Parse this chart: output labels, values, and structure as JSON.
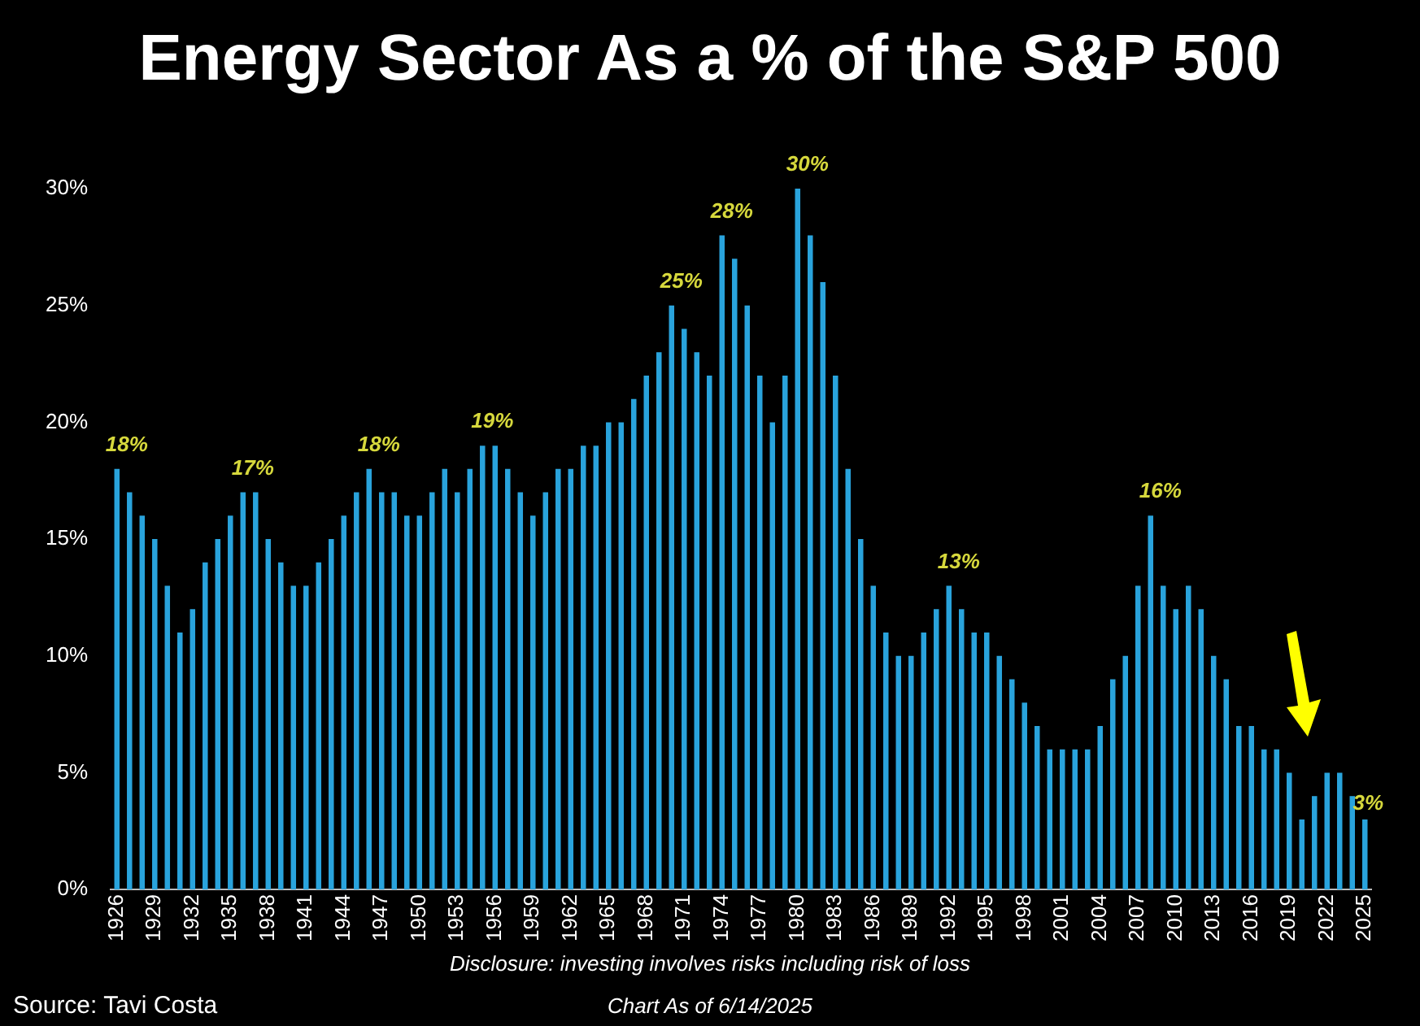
{
  "chart_data": {
    "type": "bar",
    "title": "Energy Sector As a % of the S&P 500",
    "categories": [
      "1926",
      null,
      null,
      "1929",
      null,
      null,
      "1932",
      null,
      null,
      "1935",
      null,
      null,
      "1938",
      null,
      null,
      "1941",
      null,
      null,
      "1944",
      null,
      null,
      "1947",
      null,
      null,
      "1950",
      null,
      null,
      "1953",
      null,
      null,
      "1956",
      null,
      null,
      "1959",
      null,
      null,
      "1962",
      null,
      null,
      "1965",
      null,
      null,
      "1968",
      null,
      null,
      "1971",
      null,
      null,
      "1974",
      null,
      null,
      "1977",
      null,
      null,
      "1980",
      null,
      null,
      "1983",
      null,
      null,
      "1986",
      null,
      null,
      "1989",
      null,
      null,
      "1992",
      null,
      null,
      "1995",
      null,
      null,
      "1998",
      null,
      null,
      "2001",
      null,
      null,
      "2004",
      null,
      null,
      "2007",
      null,
      null,
      "2010",
      null,
      null,
      "2013",
      null,
      null,
      "2016",
      null,
      null,
      "2019",
      null,
      null,
      "2022",
      null,
      null,
      "2025"
    ],
    "values": [
      18,
      17,
      16,
      15,
      13,
      11,
      12,
      14,
      15,
      16,
      17,
      17,
      15,
      14,
      13,
      13,
      14,
      15,
      16,
      17,
      18,
      17,
      17,
      16,
      16,
      17,
      18,
      17,
      18,
      19,
      19,
      18,
      17,
      16,
      17,
      18,
      18,
      19,
      19,
      20,
      20,
      21,
      22,
      23,
      25,
      24,
      23,
      22,
      28,
      27,
      25,
      22,
      20,
      22,
      30,
      28,
      26,
      22,
      18,
      15,
      13,
      11,
      10,
      10,
      11,
      12,
      13,
      12,
      11,
      11,
      10,
      9,
      8,
      7,
      6,
      6,
      6,
      6,
      7,
      9,
      10,
      13,
      16,
      13,
      12,
      13,
      12,
      10,
      9,
      7,
      7,
      6,
      6,
      5,
      3,
      4,
      5,
      5,
      4,
      3
    ],
    "value_labels": [
      "18%",
      null,
      null,
      null,
      null,
      null,
      null,
      null,
      null,
      null,
      "17%",
      null,
      null,
      null,
      null,
      null,
      null,
      null,
      null,
      null,
      "18%",
      null,
      null,
      null,
      null,
      null,
      null,
      null,
      null,
      "19%",
      null,
      null,
      null,
      null,
      null,
      null,
      null,
      null,
      null,
      null,
      null,
      null,
      null,
      null,
      "25%",
      null,
      null,
      null,
      "28%",
      null,
      null,
      null,
      null,
      null,
      "30%",
      null,
      null,
      null,
      null,
      null,
      null,
      null,
      null,
      null,
      null,
      null,
      "13%",
      null,
      null,
      null,
      null,
      null,
      null,
      null,
      null,
      null,
      null,
      null,
      null,
      null,
      null,
      null,
      "16%",
      null,
      null,
      null,
      null,
      null,
      null,
      null,
      null,
      null,
      null,
      null,
      null,
      null,
      null,
      null,
      null,
      "3%"
    ],
    "color": "#29a3dc",
    "ylim": [
      0,
      30
    ],
    "yticks": [
      {
        "value": 0,
        "label": "0%"
      },
      {
        "value": 5,
        "label": "5%"
      },
      {
        "value": 10,
        "label": "10%"
      },
      {
        "value": 15,
        "label": "15%"
      },
      {
        "value": 20,
        "label": "20%"
      },
      {
        "value": 25,
        "label": "25%"
      },
      {
        "value": 30,
        "label": "30%"
      }
    ],
    "grid": false,
    "legend": false,
    "annotations": [
      "Disclosure: investing involves risks including risk of loss",
      "Source: Tavi Costa",
      "Chart As of 6/14/2025"
    ]
  }
}
